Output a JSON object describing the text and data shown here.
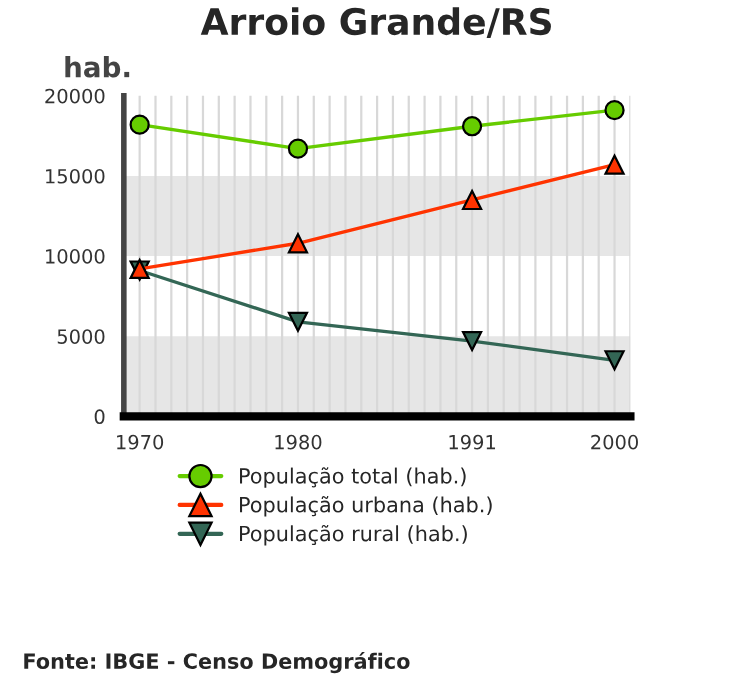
{
  "chart_data": {
    "type": "line",
    "title": "Arroio Grande/RS",
    "ylabel": "hab.",
    "x": [
      1970,
      1980,
      1991,
      2000
    ],
    "series": [
      {
        "name": "População total (hab.)",
        "color": "#66cc00",
        "marker": "circle",
        "values": [
          18200,
          16700,
          18100,
          19100
        ]
      },
      {
        "name": "População urbana (hab.)",
        "color": "#ff3300",
        "marker": "triangle",
        "values": [
          9200,
          10800,
          13500,
          15700
        ]
      },
      {
        "name": "População rural (hab.)",
        "color": "#336655",
        "marker": "triangle_down",
        "values": [
          9100,
          5900,
          4700,
          3500
        ]
      }
    ],
    "xlim": [
      1969,
      2001
    ],
    "xticks": [
      1970,
      1980,
      1991,
      2000
    ],
    "ylim": [
      0,
      20000
    ],
    "yticks": [
      0,
      5000,
      10000,
      15000,
      20000
    ],
    "bands": [
      {
        "axis": "y",
        "from": 0,
        "to": 5000,
        "color": "#e6e6e6"
      },
      {
        "axis": "y",
        "from": 10000,
        "to": 15000,
        "color": "#e6e6e6"
      }
    ],
    "grid": "x",
    "legend": "bottom",
    "annotations": [
      "Fonte: IBGE - Censo Demográfico"
    ]
  }
}
